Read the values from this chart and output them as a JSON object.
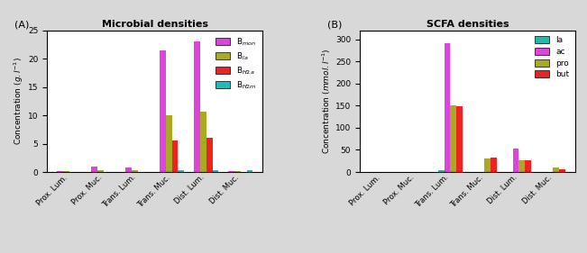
{
  "microbial_title": "Microbial densities",
  "scfa_title": "SCFA densities",
  "categories": [
    "Prox. Lum.",
    "Prox. Muc.",
    "Trans. Lum.",
    "Trans. Muc.",
    "Dist. Lum.",
    "Dist. Muc."
  ],
  "microbial_series": {
    "B_mon": [
      0.2,
      1.0,
      0.8,
      21.5,
      23.0,
      0.1
    ],
    "B_la": [
      0.1,
      0.3,
      0.3,
      10.0,
      10.7,
      0.1
    ],
    "B_H2a": [
      0.01,
      0.01,
      0.01,
      5.5,
      6.0,
      0.01
    ],
    "B_H2m": [
      0.01,
      0.01,
      0.01,
      0.3,
      0.3,
      0.3
    ]
  },
  "microbial_colors": {
    "B_mon": "#dd44dd",
    "B_la": "#aaaa22",
    "B_H2a": "#ee2222",
    "B_H2m": "#22bbbb"
  },
  "scfa_series": {
    "la": [
      0.0,
      0.0,
      4.0,
      0.5,
      0.5,
      0.0
    ],
    "ac": [
      0.0,
      0.0,
      290.0,
      1.0,
      53.0,
      0.0
    ],
    "pro": [
      0.0,
      0.0,
      150.0,
      30.0,
      27.0,
      10.0
    ],
    "but": [
      0.0,
      0.0,
      149.0,
      33.0,
      26.0,
      7.0
    ]
  },
  "scfa_colors": {
    "la": "#22bbaa",
    "ac": "#dd44dd",
    "pro": "#aaaa22",
    "but": "#ee2222"
  },
  "background_color": "#d8d8d8",
  "panel_A_label": "(A)",
  "panel_B_label": "(B)"
}
